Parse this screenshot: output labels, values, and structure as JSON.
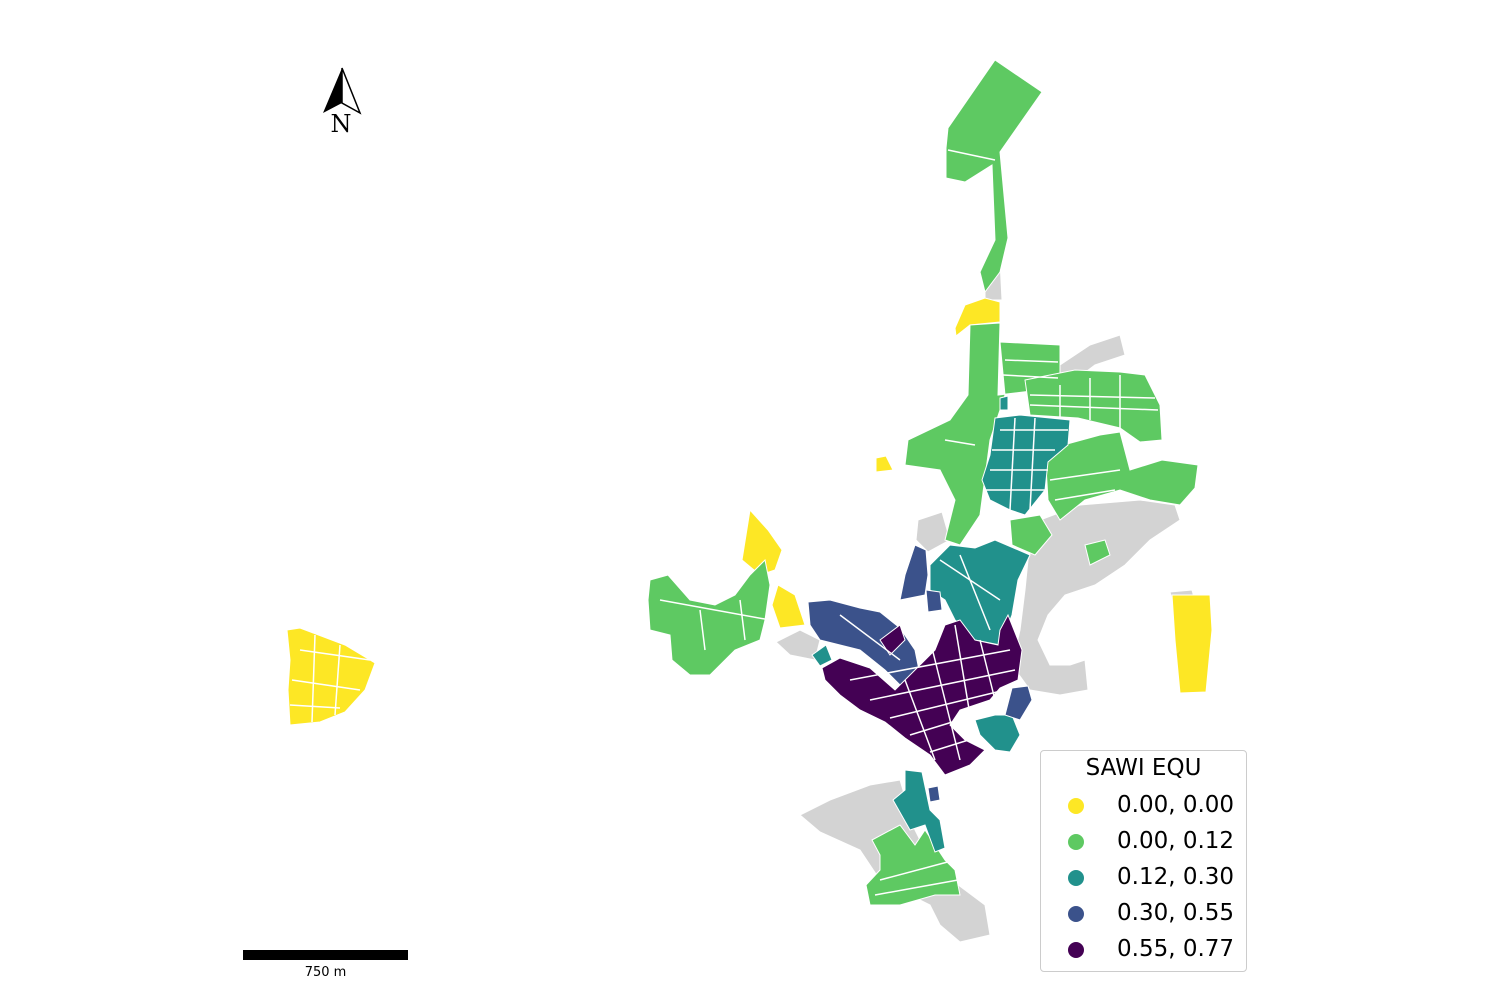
{
  "map": {
    "north_label": "N",
    "scale_label": "750 m",
    "no_data_color": "#d3d3d3",
    "legend": {
      "title": "SAWI EQU",
      "classes": [
        {
          "label": "0.00, 0.00",
          "color": "#fde725"
        },
        {
          "label": "0.00, 0.12",
          "color": "#5ec962"
        },
        {
          "label": "0.12, 0.30",
          "color": "#21918c"
        },
        {
          "label": "0.30, 0.55",
          "color": "#3b528b"
        },
        {
          "label": "0.55, 0.77",
          "color": "#440154"
        }
      ]
    }
  }
}
